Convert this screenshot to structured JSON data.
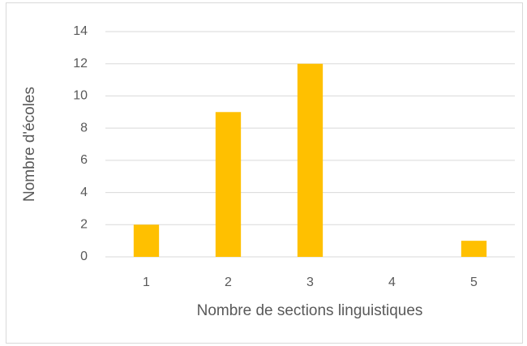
{
  "chart_data": {
    "type": "bar",
    "x_label": "Nombre de sections linguistiques",
    "y_label": "Nombre d'écoles",
    "categories": [
      "1",
      "2",
      "3",
      "4",
      "5"
    ],
    "values": [
      2,
      9,
      12,
      0,
      1
    ],
    "color": "#ffc000",
    "ylim": [
      0,
      14
    ],
    "yticks": [
      0,
      2,
      4,
      6,
      8,
      10,
      12,
      14
    ],
    "grid": true
  }
}
